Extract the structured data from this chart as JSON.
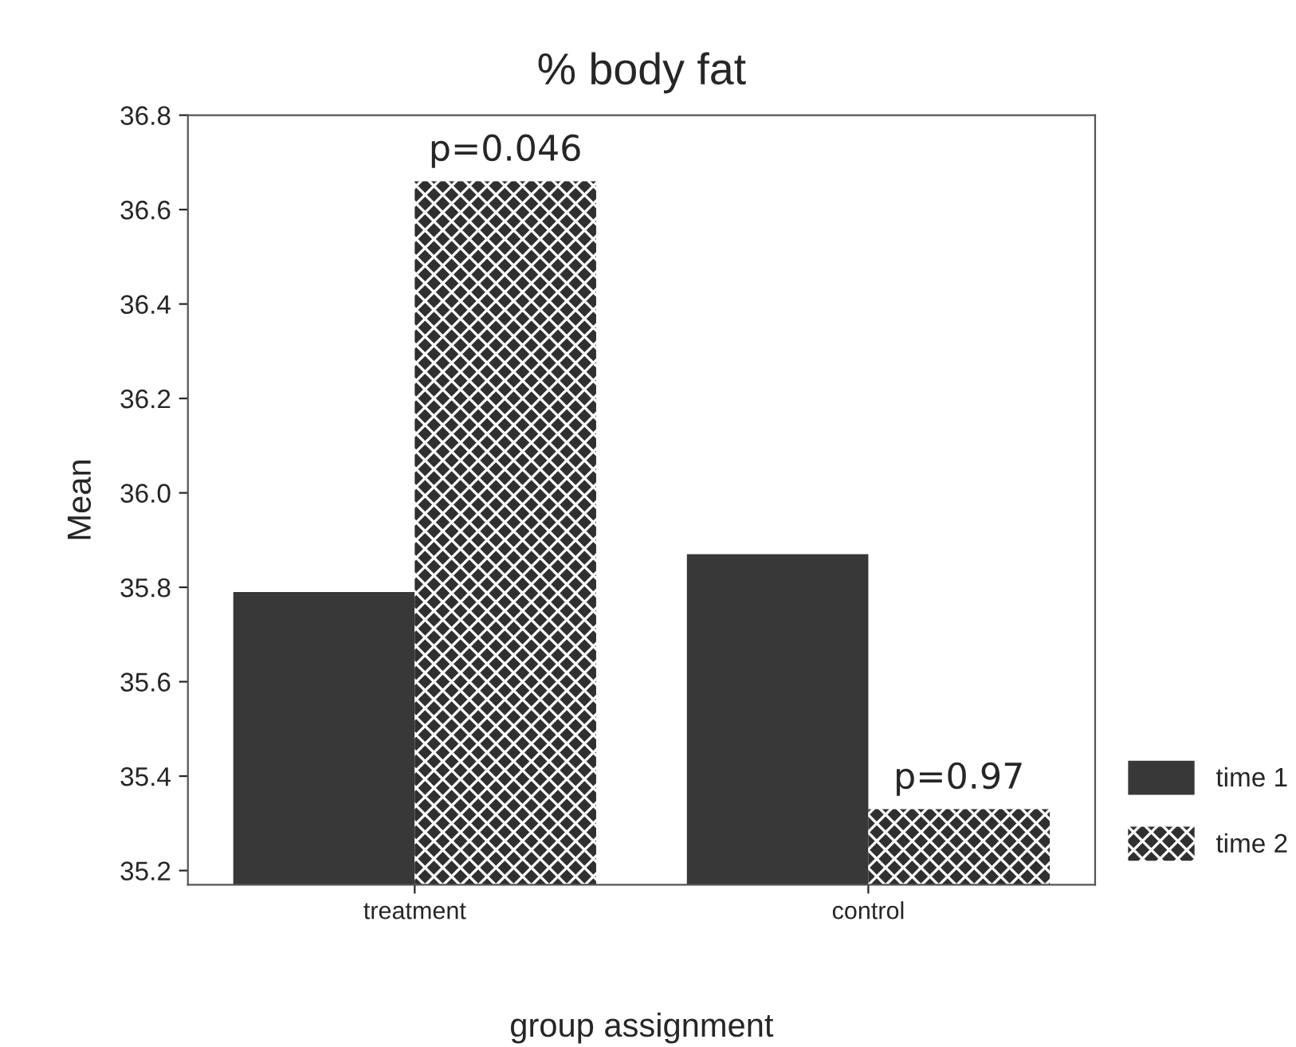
{
  "chart_data": {
    "type": "bar",
    "title": "% body fat",
    "xlabel": "group assignment",
    "ylabel": "Mean",
    "categories": [
      "treatment",
      "control"
    ],
    "series": [
      {
        "name": "time 1",
        "color": "#383838",
        "values": [
          35.79,
          35.87
        ]
      },
      {
        "name": "time 2",
        "color": "#303030",
        "values": [
          36.66,
          35.33
        ]
      }
    ],
    "ylim": [
      35.17,
      36.8
    ],
    "yticks": [
      35.2,
      35.4,
      35.6,
      35.8,
      {
        "value": 36,
        "label": "36.0"
      },
      36.2,
      36.4,
      36.6,
      36.8
    ],
    "annotations": [
      {
        "text": "p=0.046",
        "x": "treatment",
        "y": 36.66
      },
      {
        "text": "p=0.97",
        "x": "control",
        "y": 35.33
      }
    ],
    "legend": "right",
    "grid": false
  }
}
